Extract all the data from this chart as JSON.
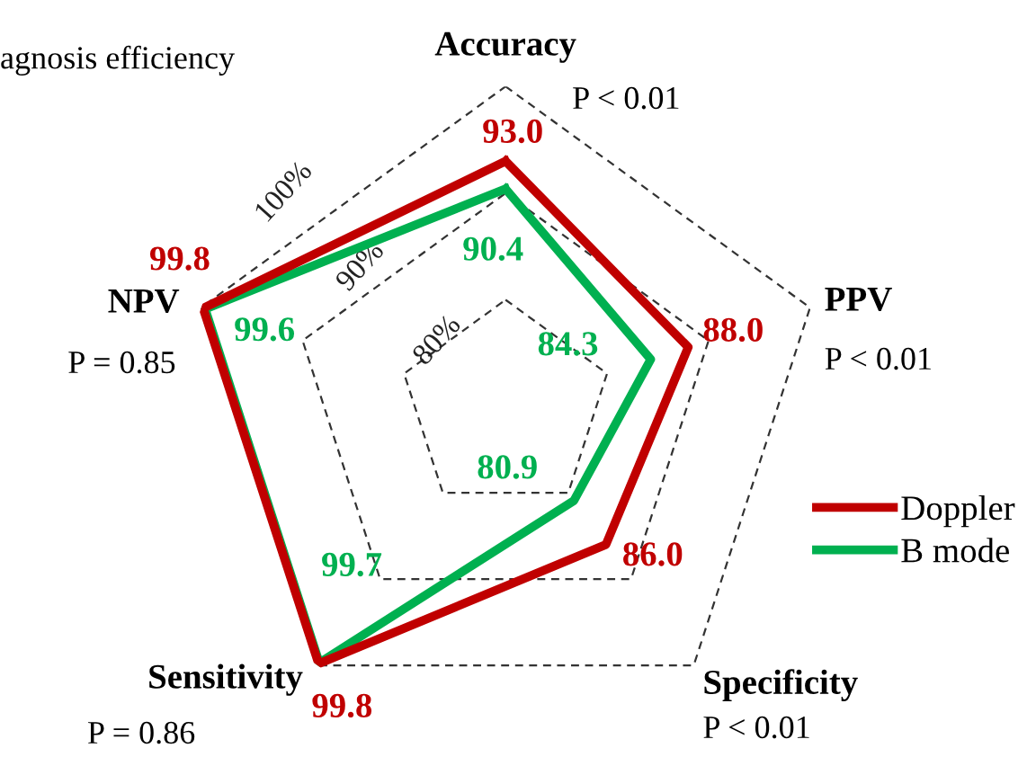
{
  "chart_data": {
    "type": "radar",
    "title": "agnosis efficiency",
    "categories": [
      "Accuracy",
      "PPV",
      "Specificity",
      "Sensitivity",
      "NPV"
    ],
    "series": [
      {
        "name": "Doppler",
        "color": "#c00000",
        "values": [
          93.0,
          88.0,
          86.0,
          99.8,
          99.8
        ],
        "value_labels": [
          "93.0",
          "88.0",
          "86.0",
          "99.8",
          "99.8"
        ]
      },
      {
        "name": "B mode",
        "color": "#00b050",
        "values": [
          90.4,
          84.3,
          80.9,
          99.7,
          99.6
        ],
        "value_labels": [
          "90.4",
          "84.3",
          "80.9",
          "99.7",
          "99.6"
        ]
      }
    ],
    "ylim": [
      70,
      100
    ],
    "yticks": [
      {
        "value": 80,
        "label": "80%"
      },
      {
        "value": 90,
        "label": "90%"
      },
      {
        "value": 100,
        "label": "100%"
      }
    ],
    "grid": true,
    "legend": "bottom right",
    "marker": "none",
    "line_style": "solid",
    "annotations": [
      {
        "text": "P < 0.01",
        "x": "Accuracy"
      },
      {
        "text": "P < 0.01",
        "x": "PPV"
      },
      {
        "text": "P < 0.01",
        "x": "Specificity"
      },
      {
        "text": "P = 0.86",
        "x": "Sensitivity"
      },
      {
        "text": "P = 0.85",
        "x": "NPV"
      }
    ]
  }
}
